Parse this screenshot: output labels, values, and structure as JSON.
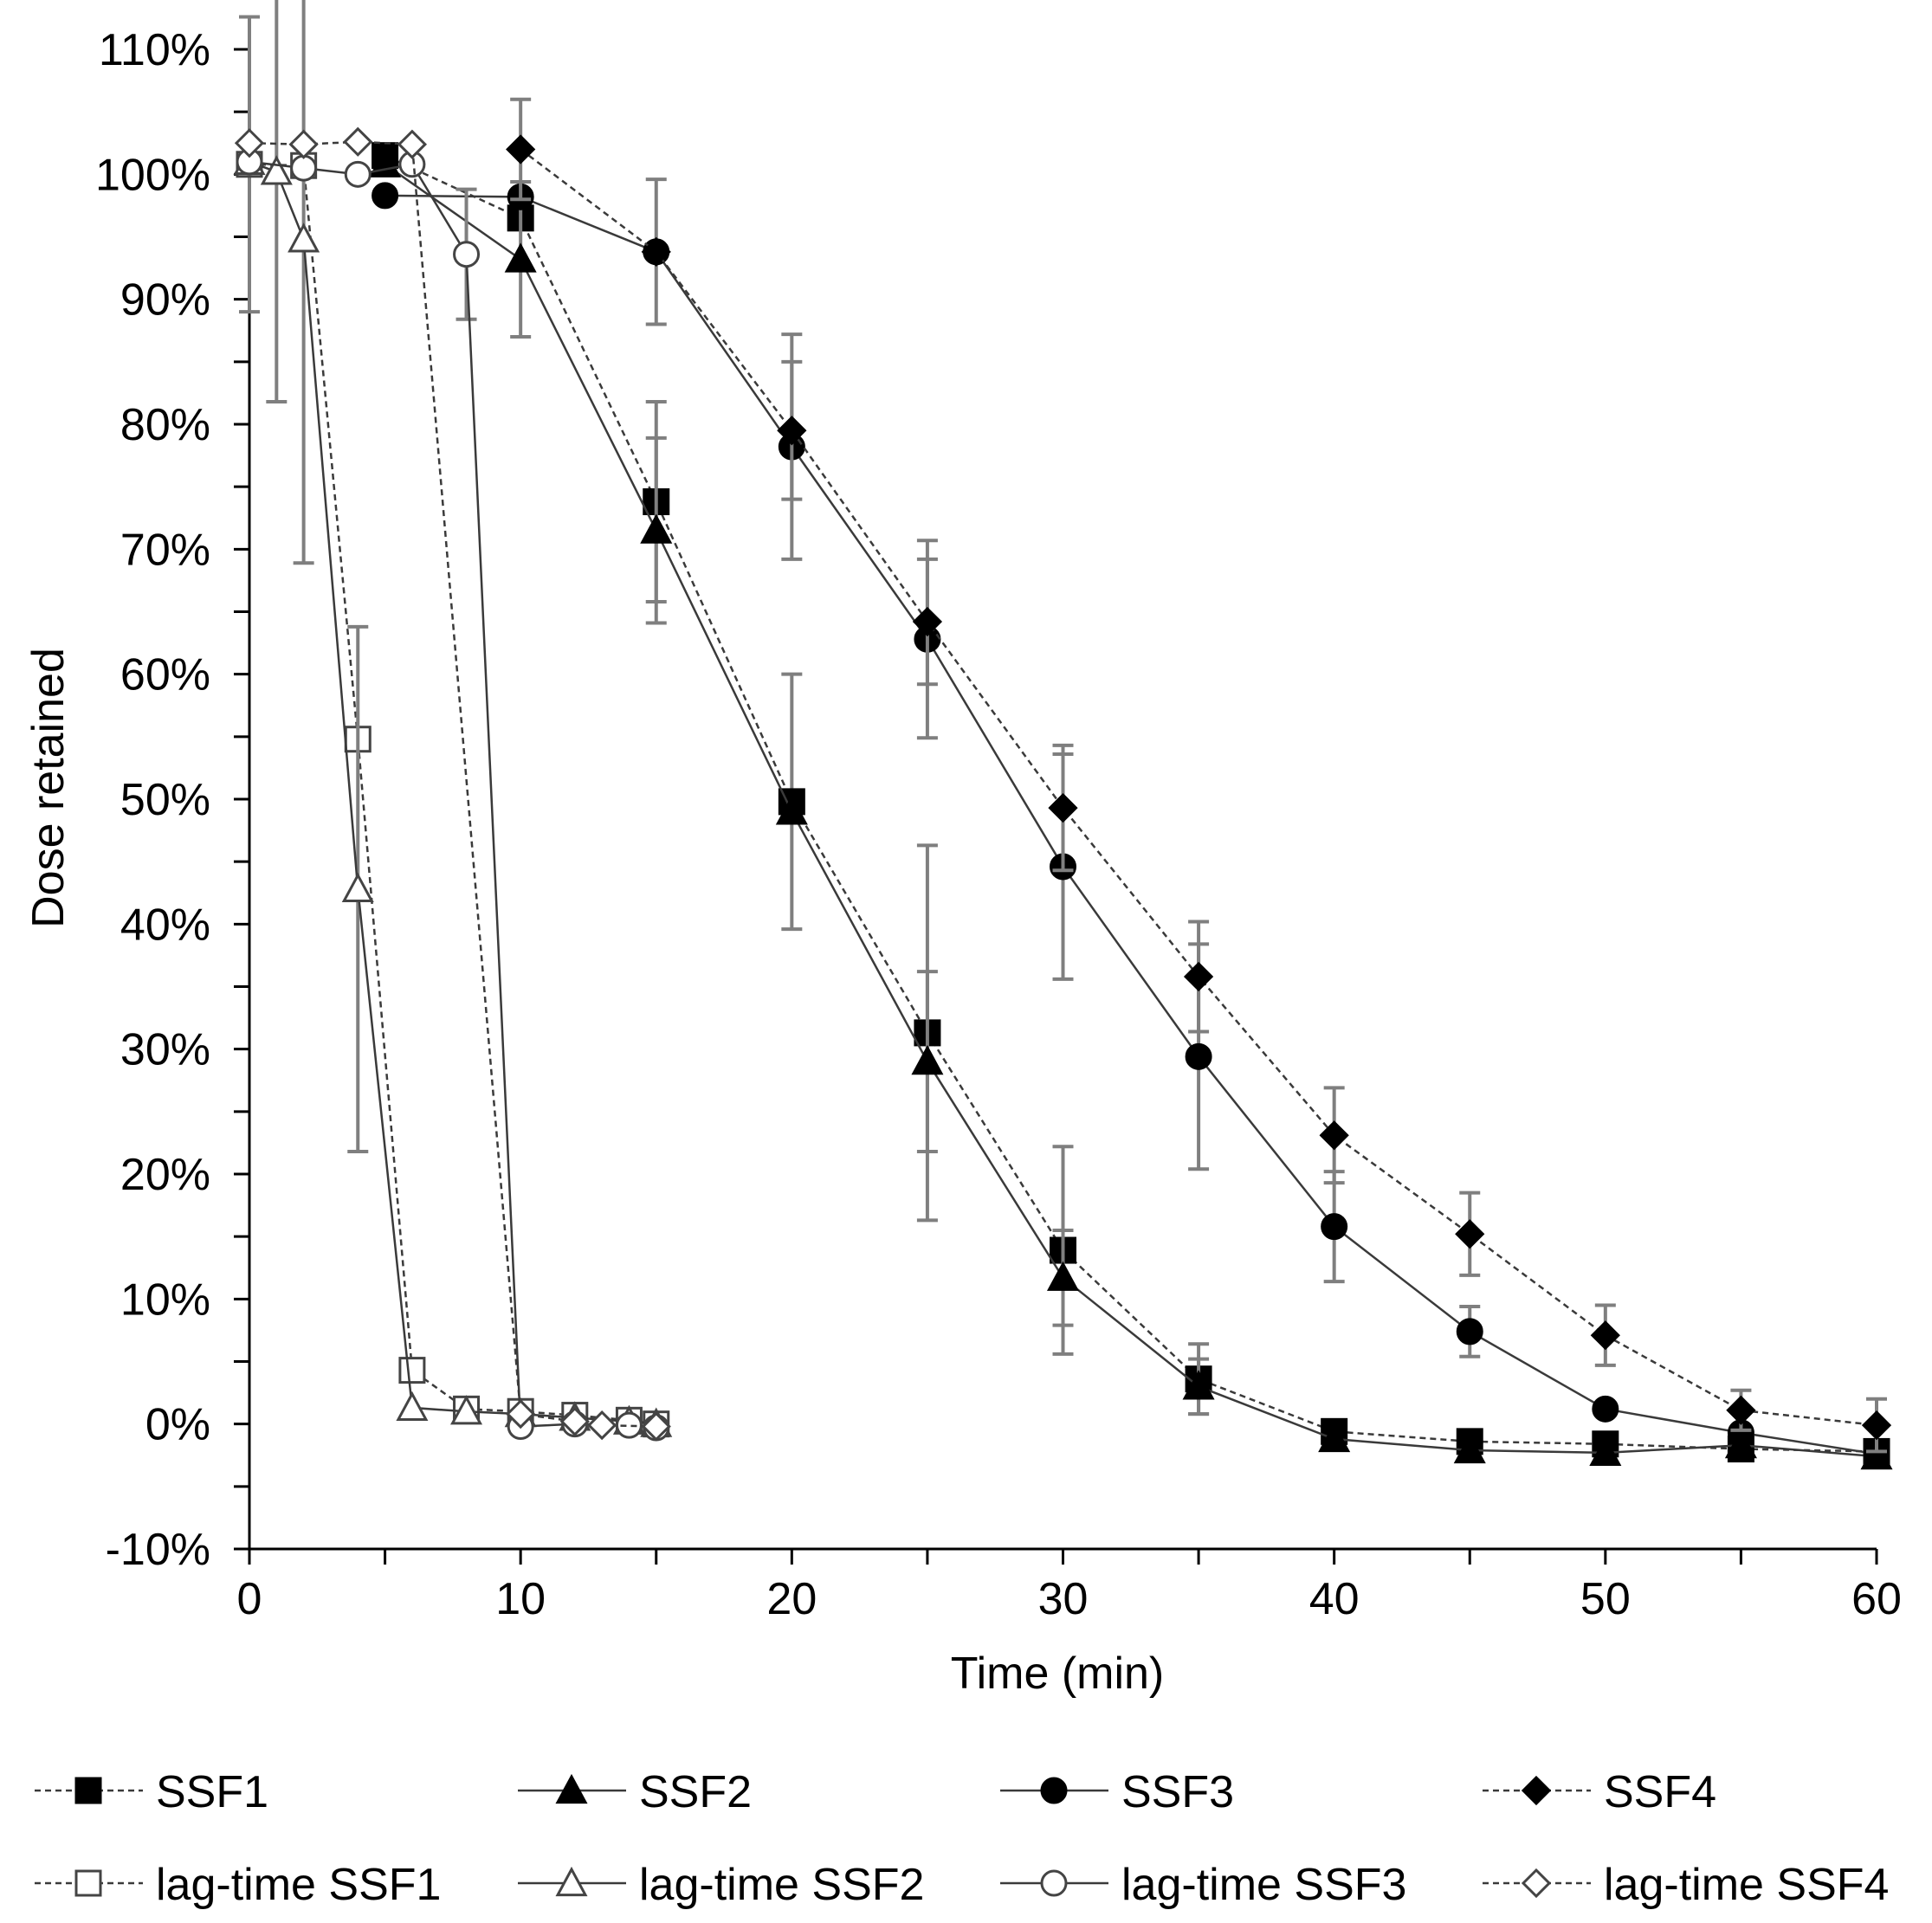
{
  "chart_data": {
    "type": "line",
    "title": "",
    "xlabel": "Time (min)",
    "ylabel": "Dose retained",
    "xlim": [
      0,
      60
    ],
    "ylim": [
      -10,
      110
    ],
    "x_ticks": [
      0,
      10,
      20,
      30,
      40,
      50,
      60
    ],
    "x_tick_labels": [
      "0",
      "10",
      "20",
      "30",
      "40",
      "50",
      "60"
    ],
    "y_ticks": [
      -10,
      0,
      10,
      20,
      30,
      40,
      50,
      60,
      70,
      80,
      90,
      100,
      110
    ],
    "y_tick_labels": [
      "-10%",
      "0%",
      "10%",
      "20%",
      "30%",
      "40%",
      "50%",
      "60%",
      "70%",
      "80%",
      "90%",
      "100%",
      "110%"
    ],
    "grid": false,
    "legend_position": "bottom",
    "line_color": "#3a3a3a",
    "error_bar_color": "#7f7f7f",
    "series": [
      {
        "name": "SSF1",
        "marker": "square",
        "filled": true,
        "dash": "dashed",
        "x": [
          5,
          10,
          15,
          20,
          25,
          30,
          35,
          40,
          45,
          50,
          55,
          60
        ],
        "y": [
          101.5,
          96.5,
          73.8,
          49.8,
          31.3,
          13.9,
          3.6,
          -0.6,
          -1.4,
          -1.6,
          -2.0,
          -2.2
        ],
        "err": [
          0,
          0,
          8,
          10.2,
          15,
          8.3,
          2.8,
          0,
          0,
          0,
          0,
          0
        ]
      },
      {
        "name": "SSF2",
        "marker": "triangle",
        "filled": true,
        "dash": "solid",
        "x": [
          5,
          10,
          15,
          20,
          25,
          30,
          35,
          40,
          45,
          50,
          55,
          60
        ],
        "y": [
          100.8,
          93.2,
          71.5,
          49.0,
          29.0,
          11.7,
          3.0,
          -1.2,
          -2.1,
          -2.3,
          -1.7,
          -2.6
        ],
        "err": [
          0,
          6.2,
          7.4,
          0,
          7.2,
          3.8,
          2.2,
          0,
          0,
          0,
          0,
          0
        ]
      },
      {
        "name": "SSF3",
        "marker": "circle",
        "filled": true,
        "dash": "solid",
        "x": [
          5,
          10,
          15,
          20,
          25,
          30,
          35,
          40,
          45,
          50,
          55,
          60
        ],
        "y": [
          98.3,
          98.2,
          93.8,
          78.2,
          62.8,
          44.6,
          29.4,
          15.8,
          7.4,
          1.2,
          -0.7,
          -2.4
        ],
        "err": [
          0,
          0,
          5.8,
          9.0,
          7.9,
          9.0,
          9.0,
          4.4,
          2.0,
          0,
          0,
          0
        ]
      },
      {
        "name": "SSF4",
        "marker": "diamond",
        "filled": true,
        "dash": "dashed",
        "x": [
          10,
          15,
          20,
          25,
          30,
          35,
          40,
          45,
          50,
          55,
          60
        ],
        "y": [
          102.0,
          93.8,
          79.5,
          64.2,
          49.3,
          35.8,
          23.1,
          15.2,
          7.1,
          1.1,
          -0.1
        ],
        "err": [
          4.0,
          0,
          5.5,
          5.0,
          5.0,
          4.4,
          3.8,
          3.3,
          2.4,
          1.6,
          2.1
        ]
      },
      {
        "name": "lag-time SSF1",
        "marker": "square",
        "filled": false,
        "dash": "dashed",
        "x": [
          0,
          2,
          4,
          6,
          8,
          10,
          12,
          14,
          15
        ],
        "y": [
          100.8,
          100.7,
          54.8,
          4.3,
          1.2,
          1.0,
          0.7,
          0.3,
          0.0
        ],
        "err": [
          11.8,
          0,
          0,
          0,
          0,
          0,
          0,
          0,
          0
        ]
      },
      {
        "name": "lag-time SSF2",
        "marker": "triangle",
        "filled": false,
        "dash": "solid",
        "x": [
          0,
          1,
          2,
          4,
          6,
          8,
          10,
          12,
          14,
          15
        ],
        "y": [
          101.0,
          100.2,
          94.8,
          42.8,
          1.3,
          1.0,
          0.8,
          0.5,
          0.2,
          0.0
        ],
        "err": [
          0,
          18.4,
          25.9,
          21.0,
          0,
          0,
          0,
          0,
          0,
          0
        ]
      },
      {
        "name": "lag-time SSF3",
        "marker": "circle",
        "filled": false,
        "dash": "solid",
        "x": [
          0,
          2,
          4,
          6,
          8,
          10,
          12,
          14,
          15
        ],
        "y": [
          101.0,
          100.5,
          100.0,
          100.8,
          93.6,
          -0.2,
          0.0,
          -0.1,
          -0.3
        ],
        "err": [
          0,
          0,
          0,
          0,
          5.2,
          0,
          0,
          0,
          0
        ]
      },
      {
        "name": "lag-time SSF4",
        "marker": "diamond",
        "filled": false,
        "dash": "dashed",
        "x": [
          0,
          2,
          4,
          6,
          10,
          12,
          13,
          15
        ],
        "y": [
          102.5,
          102.4,
          102.6,
          102.4,
          0.8,
          0.2,
          -0.1,
          -0.2
        ],
        "err": [
          0,
          0,
          0,
          0,
          0,
          0,
          0,
          0
        ]
      }
    ]
  }
}
